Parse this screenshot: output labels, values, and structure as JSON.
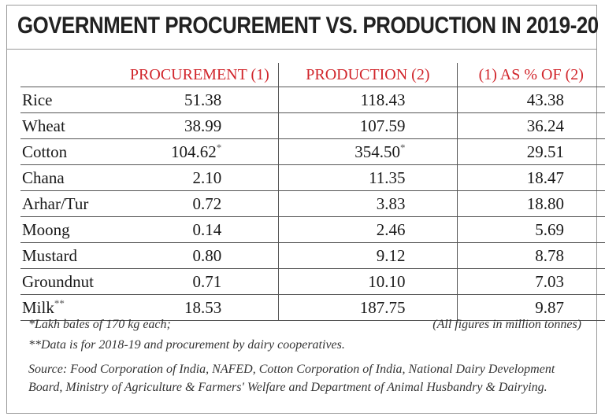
{
  "title": "GOVERNMENT PROCUREMENT VS. PRODUCTION IN 2019-20",
  "columns": [
    "PROCUREMENT (1)",
    "PRODUCTION (2)",
    "(1) AS % OF (2)"
  ],
  "rows": [
    {
      "name": "Rice",
      "name_mark": "",
      "procurement": "51.38",
      "procurement_mark": "",
      "production": "118.43",
      "production_mark": "",
      "percent": "43.38"
    },
    {
      "name": "Wheat",
      "name_mark": "",
      "procurement": "38.99",
      "procurement_mark": "",
      "production": "107.59",
      "production_mark": "",
      "percent": "36.24"
    },
    {
      "name": "Cotton",
      "name_mark": "",
      "procurement": "104.62",
      "procurement_mark": "*",
      "production": "354.50",
      "production_mark": "*",
      "percent": "29.51"
    },
    {
      "name": "Chana",
      "name_mark": "",
      "procurement": "2.10",
      "procurement_mark": "",
      "production": "11.35",
      "production_mark": "",
      "percent": "18.47"
    },
    {
      "name": "Arhar/Tur",
      "name_mark": "",
      "procurement": "0.72",
      "procurement_mark": "",
      "production": "3.83",
      "production_mark": "",
      "percent": "18.80"
    },
    {
      "name": "Moong",
      "name_mark": "",
      "procurement": "0.14",
      "procurement_mark": "",
      "production": "2.46",
      "production_mark": "",
      "percent": "5.69"
    },
    {
      "name": "Mustard",
      "name_mark": "",
      "procurement": "0.80",
      "procurement_mark": "",
      "production": "9.12",
      "production_mark": "",
      "percent": "8.78"
    },
    {
      "name": "Groundnut",
      "name_mark": "",
      "procurement": "0.71",
      "procurement_mark": "",
      "production": "10.10",
      "production_mark": "",
      "percent": "7.03"
    },
    {
      "name": "Milk",
      "name_mark": "**",
      "procurement": "18.53",
      "procurement_mark": "",
      "production": "187.75",
      "production_mark": "",
      "percent": "9.87"
    }
  ],
  "notes": {
    "note1": "*Lakh bales of 170 kg each;",
    "units": "(All figures in million tonnes)",
    "note2": "**Data is for 2018-19 and procurement by dairy cooperatives.",
    "source": "Source: Food Corporation of India, NAFED, Cotton Corporation of India, National Dairy Development Board, Ministry of Agriculture & Farmers' Welfare and Department of Animal Husbandry & Dairying."
  },
  "colors": {
    "header_red": "#d1252b",
    "rule": "#555555"
  }
}
